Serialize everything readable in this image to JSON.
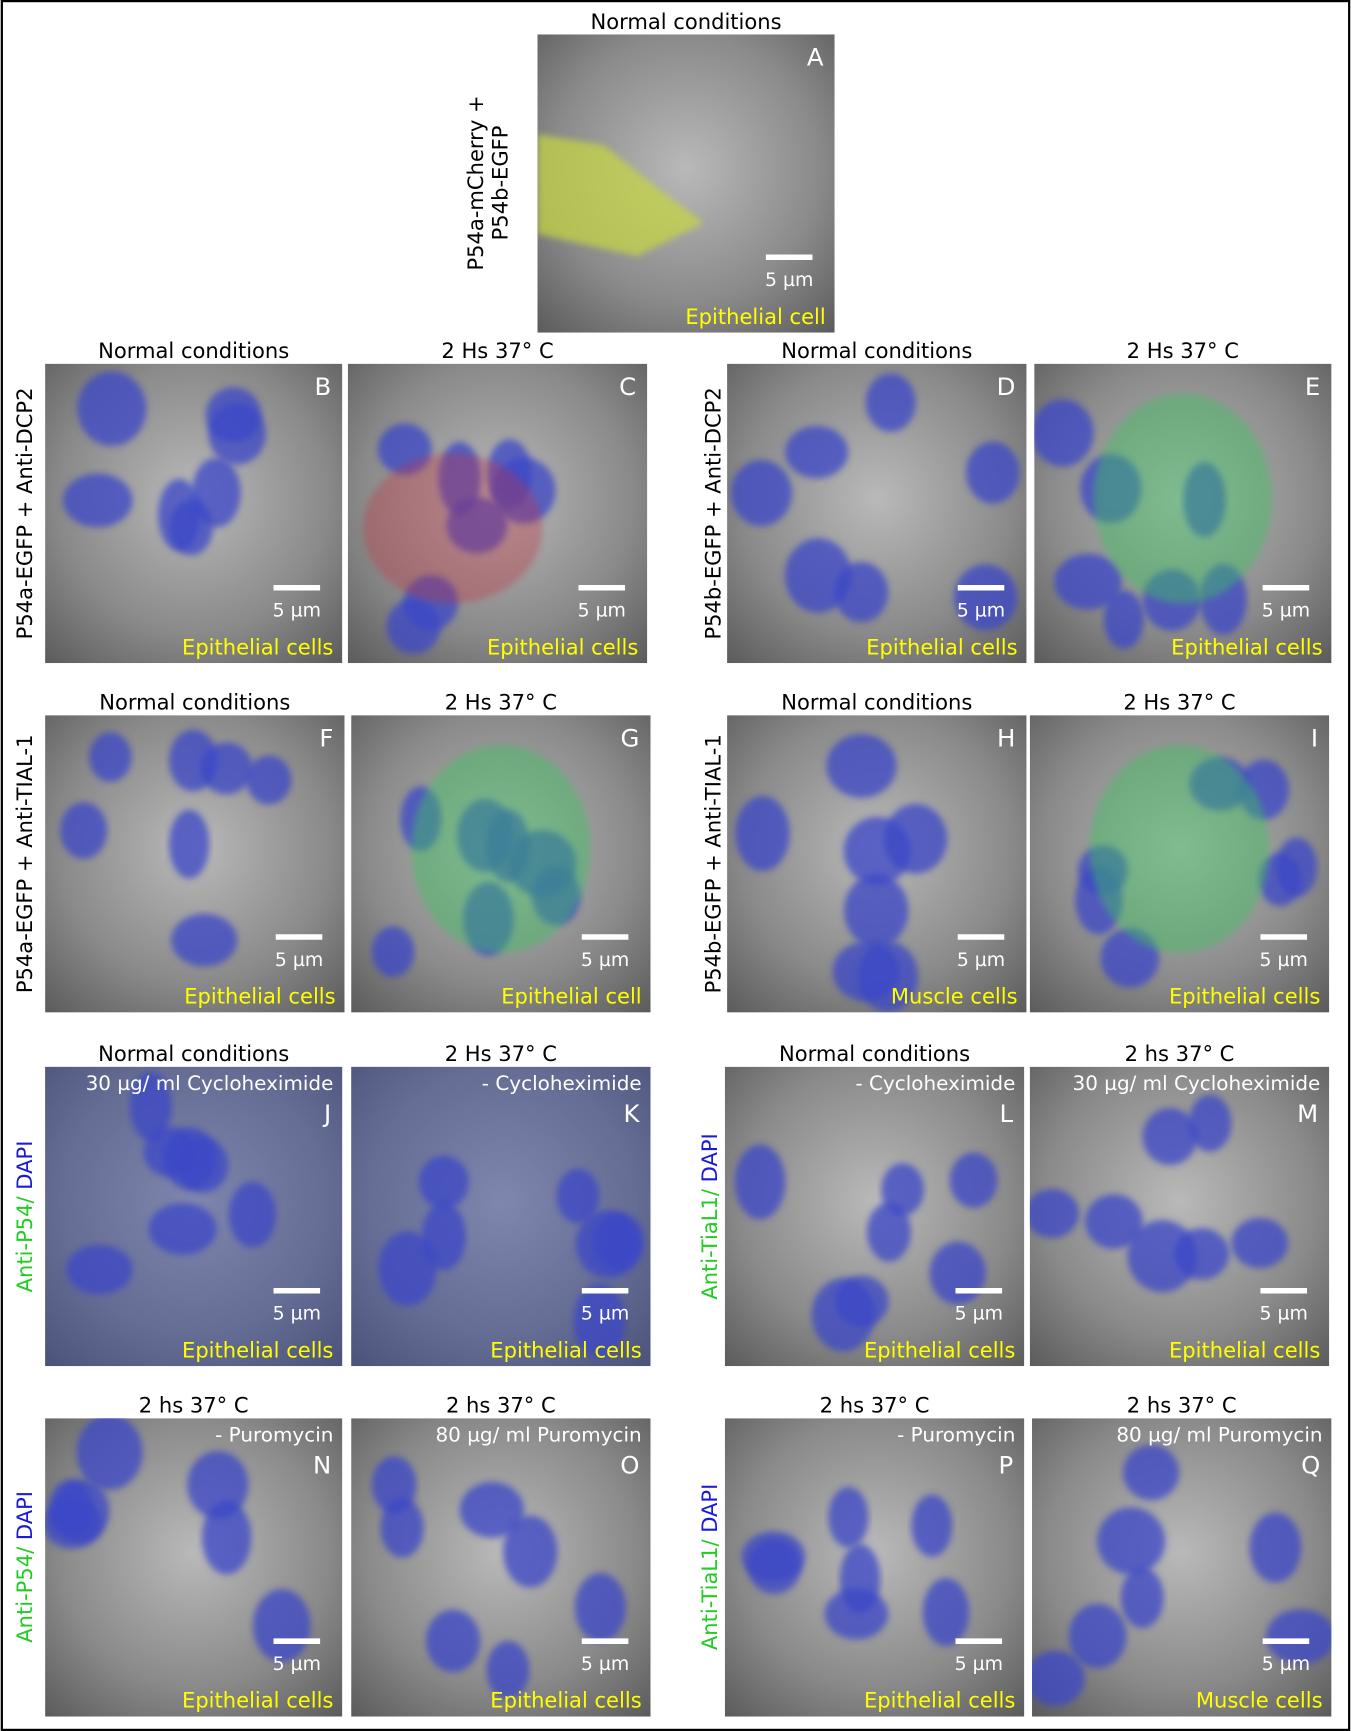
{
  "panels": [
    {
      "letter": "A",
      "title": "Normal conditions",
      "cells": "Epithelial cell",
      "scale": "5 µm"
    },
    {
      "letter": "B",
      "title": "Normal conditions",
      "cells": "Epithelial cells",
      "scale": "5 µm"
    },
    {
      "letter": "C",
      "title": "2 Hs 37° C",
      "cells": "Epithelial cells",
      "scale": "5 µm"
    },
    {
      "letter": "D",
      "title": "Normal conditions",
      "cells": "Epithelial cells",
      "scale": "5 µm"
    },
    {
      "letter": "E",
      "title": "2 Hs 37° C",
      "cells": "Epithelial cells",
      "scale": "5 µm"
    },
    {
      "letter": "F",
      "title": "Normal conditions",
      "cells": "Epithelial cells",
      "scale": "5 µm"
    },
    {
      "letter": "G",
      "title": "2 Hs 37° C",
      "cells": "Epithelial cell",
      "scale": "5 µm"
    },
    {
      "letter": "H",
      "title": "Normal conditions",
      "cells": "Muscle cells",
      "scale": "5 µm"
    },
    {
      "letter": "I",
      "title": "2 Hs 37° C",
      "cells": "Epithelial cells",
      "scale": "5 µm"
    },
    {
      "letter": "J",
      "title": "Normal conditions",
      "treatment": "30 µg/ ml  Cycloheximide",
      "cells": "Epithelial cells",
      "scale": "5 µm"
    },
    {
      "letter": "K",
      "title": "2 Hs 37° C",
      "treatment": "- Cycloheximide",
      "cells": "Epithelial cells",
      "scale": "5 µm"
    },
    {
      "letter": "L",
      "title": "Normal conditions",
      "treatment": "- Cycloheximide",
      "cells": "Epithelial cells",
      "scale": "5 µm"
    },
    {
      "letter": "M",
      "title": "2 hs 37° C",
      "treatment": "30 µg/ ml Cycloheximide",
      "cells": "Epithelial cells",
      "scale": "5 µm"
    },
    {
      "letter": "N",
      "title": "2 hs 37° C",
      "treatment": "- Puromycin",
      "cells": "Epithelial cells",
      "scale": "5 µm"
    },
    {
      "letter": "O",
      "title": "2 hs 37° C",
      "treatment": "80 µg/ ml Puromycin",
      "cells": "Epithelial cells",
      "scale": "5 µm"
    },
    {
      "letter": "P",
      "title": "2 hs 37° C",
      "treatment": "- Puromycin",
      "cells": "Epithelial cells",
      "scale": "5 µm"
    },
    {
      "letter": "Q",
      "title": "2 hs 37° C",
      "treatment": "80 µg/ ml Puromycin",
      "cells": "Muscle cells",
      "scale": "5 µm"
    }
  ],
  "row_labels": [
    {
      "lines": [
        "P54a-mCherry +",
        "P54b-EGFP"
      ]
    },
    {
      "lines": [
        "P54a-EGFP + Anti-DCP2"
      ]
    },
    {
      "lines": [
        "P54b-EGFP + Anti-DCP2"
      ]
    },
    {
      "lines": [
        "P54a-EGFP + Anti-TIAL-1"
      ]
    },
    {
      "lines": [
        "P54b-EGFP + Anti-TIAL-1"
      ]
    },
    {
      "antibody": "Anti-P54/",
      "stain": "DAPI"
    },
    {
      "antibody": "Anti-TiaL1/",
      "stain": "DAPI"
    },
    {
      "antibody": "Anti-P54/",
      "stain": "DAPI"
    },
    {
      "antibody": "Anti-TiaL1/",
      "stain": "DAPI"
    }
  ]
}
